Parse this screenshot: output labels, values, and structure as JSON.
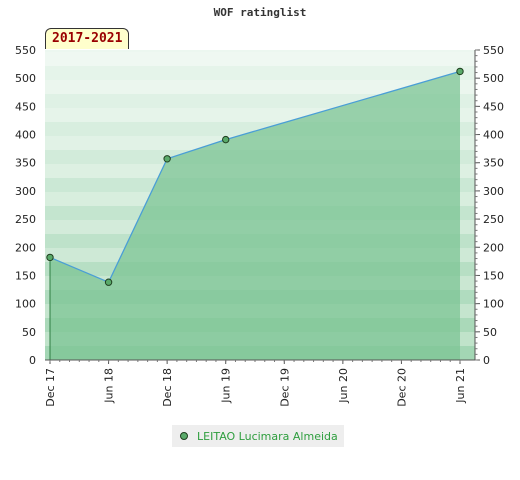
{
  "chart_data": {
    "type": "area",
    "title": "WOF ratinglist",
    "period_label": "2017-2021",
    "x": [
      "Dec 17",
      "Jun 18",
      "Dec 18",
      "Jun 19",
      "Dec 19",
      "Jun 20",
      "Dec 20",
      "Jun 21"
    ],
    "series": [
      {
        "name": "LEITAO Lucimara Almeida",
        "points": [
          {
            "x": "Dec 17",
            "y": 182
          },
          {
            "x": "Jun 18",
            "y": 138
          },
          {
            "x": "Dec 18",
            "y": 357
          },
          {
            "x": "Jun 19",
            "y": 391
          },
          {
            "x": "Jun 21",
            "y": 512
          }
        ]
      }
    ],
    "y_ticks": [
      0,
      50,
      100,
      150,
      200,
      250,
      300,
      350,
      400,
      450,
      500,
      550
    ],
    "ylim": [
      0,
      550
    ],
    "y_axis_both_sides": true,
    "colors": {
      "fill": "#7cc494",
      "line": "#4a9ed6",
      "marker": "#5aaa6a",
      "legend_text": "#2e9e3e"
    }
  }
}
